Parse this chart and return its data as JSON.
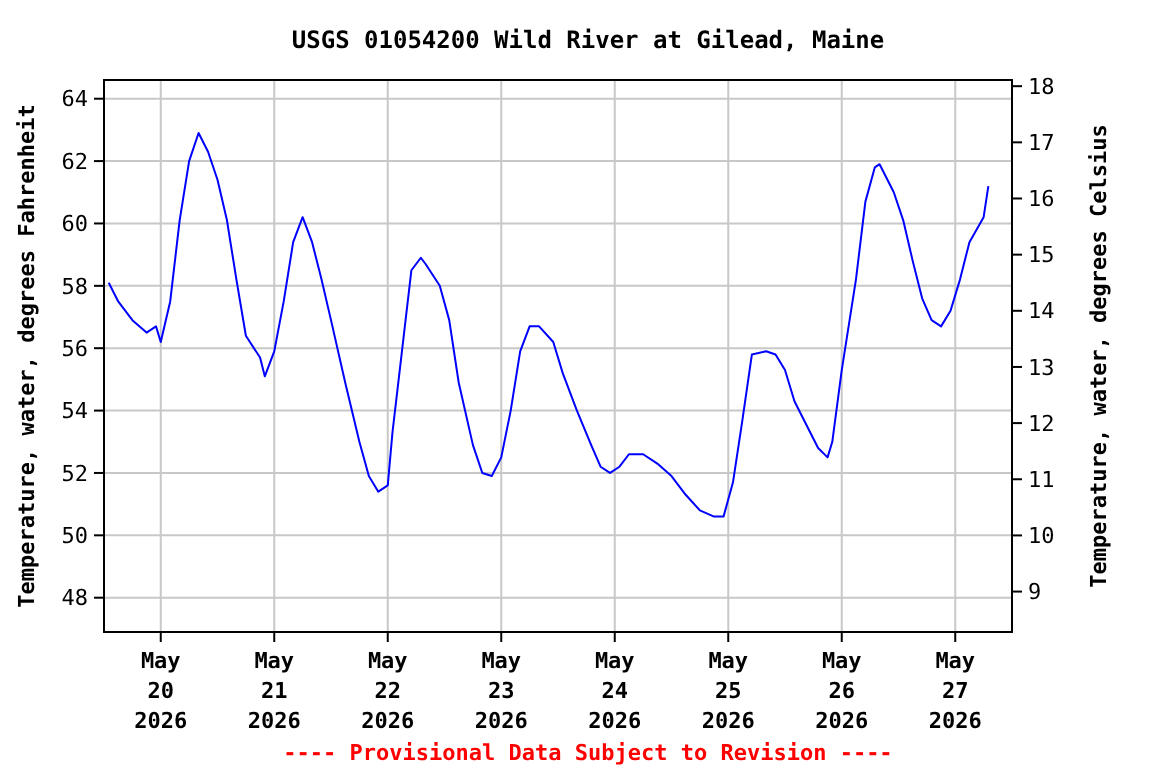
{
  "chart_data": {
    "type": "line",
    "title": "USGS 01054200 Wild River at Gilead, Maine",
    "xlabel": null,
    "ylabel": "Temperature, water, degrees Fahrenheit",
    "y2label": "Temperature, water, degrees Celsius",
    "annotations": [
      "---- Provisional Data Subject to Revision ----"
    ],
    "xlim": [
      "2026-05-19T12:00",
      "2026-05-27T12:00"
    ],
    "xticks": [
      {
        "value": "2026-05-20",
        "label": "May\n20\n2026"
      },
      {
        "value": "2026-05-21",
        "label": "May\n21\n2026"
      },
      {
        "value": "2026-05-22",
        "label": "May\n22\n2026"
      },
      {
        "value": "2026-05-23",
        "label": "May\n23\n2026"
      },
      {
        "value": "2026-05-24",
        "label": "May\n24\n2026"
      },
      {
        "value": "2026-05-25",
        "label": "May\n25\n2026"
      },
      {
        "value": "2026-05-26",
        "label": "May\n26\n2026"
      },
      {
        "value": "2026-05-27",
        "label": "May\n27\n2026"
      }
    ],
    "ylim": [
      46.9,
      64.6
    ],
    "yticks": [
      48,
      50,
      52,
      54,
      56,
      58,
      60,
      62,
      64
    ],
    "y2lim": [
      8.28,
      18.11
    ],
    "y2ticks": [
      9,
      10,
      11,
      12,
      13,
      14,
      15,
      16,
      17,
      18
    ],
    "grid": true,
    "marker": "none",
    "line_style": "solid",
    "series": [
      {
        "color": "#0000ff",
        "x": [
          "2026-05-19T13:00",
          "2026-05-19T15:00",
          "2026-05-19T18:00",
          "2026-05-19T21:00",
          "2026-05-19T23:00",
          "2026-05-20T00:00",
          "2026-05-20T02:00",
          "2026-05-20T04:00",
          "2026-05-20T06:00",
          "2026-05-20T08:00",
          "2026-05-20T10:00",
          "2026-05-20T12:00",
          "2026-05-20T14:00",
          "2026-05-20T16:00",
          "2026-05-20T18:00",
          "2026-05-20T21:00",
          "2026-05-20T22:00",
          "2026-05-21T00:00",
          "2026-05-21T02:00",
          "2026-05-21T04:00",
          "2026-05-21T06:00",
          "2026-05-21T08:00",
          "2026-05-21T10:00",
          "2026-05-21T12:00",
          "2026-05-21T15:00",
          "2026-05-21T18:00",
          "2026-05-21T20:00",
          "2026-05-21T22:00",
          "2026-05-22T00:00",
          "2026-05-22T01:00",
          "2026-05-22T03:00",
          "2026-05-22T05:00",
          "2026-05-22T07:00",
          "2026-05-22T08:00",
          "2026-05-22T11:00",
          "2026-05-22T13:00",
          "2026-05-22T15:00",
          "2026-05-22T18:00",
          "2026-05-22T20:00",
          "2026-05-22T22:00",
          "2026-05-23T00:00",
          "2026-05-23T02:00",
          "2026-05-23T04:00",
          "2026-05-23T06:00",
          "2026-05-23T08:00",
          "2026-05-23T11:00",
          "2026-05-23T13:00",
          "2026-05-23T16:00",
          "2026-05-23T19:00",
          "2026-05-23T21:00",
          "2026-05-23T23:00",
          "2026-05-24T01:00",
          "2026-05-24T03:00",
          "2026-05-24T06:00",
          "2026-05-24T09:00",
          "2026-05-24T12:00",
          "2026-05-24T15:00",
          "2026-05-24T18:00",
          "2026-05-24T21:00",
          "2026-05-24T23:00",
          "2026-05-25T01:00",
          "2026-05-25T03:00",
          "2026-05-25T05:00",
          "2026-05-25T08:00",
          "2026-05-25T10:00",
          "2026-05-25T12:00",
          "2026-05-25T14:00",
          "2026-05-25T16:00",
          "2026-05-25T19:00",
          "2026-05-25T21:00",
          "2026-05-25T22:00",
          "2026-05-26T00:00",
          "2026-05-26T03:00",
          "2026-05-26T05:00",
          "2026-05-26T07:00",
          "2026-05-26T08:00",
          "2026-05-26T11:00",
          "2026-05-26T13:00",
          "2026-05-26T15:00",
          "2026-05-26T17:00",
          "2026-05-26T19:00",
          "2026-05-26T21:00",
          "2026-05-26T23:00",
          "2026-05-27T01:00",
          "2026-05-27T03:00",
          "2026-05-27T06:00",
          "2026-05-27T07:00"
        ],
        "values": [
          58.1,
          57.5,
          56.9,
          56.5,
          56.7,
          56.2,
          57.5,
          60.1,
          62.0,
          62.9,
          62.3,
          61.4,
          60.1,
          58.2,
          56.4,
          55.7,
          55.1,
          55.9,
          57.5,
          59.4,
          60.2,
          59.4,
          58.2,
          56.9,
          54.9,
          53.0,
          51.9,
          51.4,
          51.6,
          53.3,
          55.9,
          58.5,
          58.9,
          58.7,
          58.0,
          56.9,
          54.9,
          52.9,
          52.0,
          51.9,
          52.5,
          54.0,
          55.9,
          56.7,
          56.7,
          56.2,
          55.2,
          54.0,
          52.9,
          52.2,
          52.0,
          52.2,
          52.6,
          52.6,
          52.3,
          51.9,
          51.3,
          50.8,
          50.6,
          50.6,
          51.7,
          53.7,
          55.8,
          55.9,
          55.8,
          55.3,
          54.3,
          53.7,
          52.8,
          52.5,
          53.0,
          55.3,
          58.2,
          60.7,
          61.8,
          61.9,
          61.0,
          60.1,
          58.8,
          57.6,
          56.9,
          56.7,
          57.2,
          58.2,
          59.4,
          60.2,
          61.2
        ]
      }
    ]
  }
}
